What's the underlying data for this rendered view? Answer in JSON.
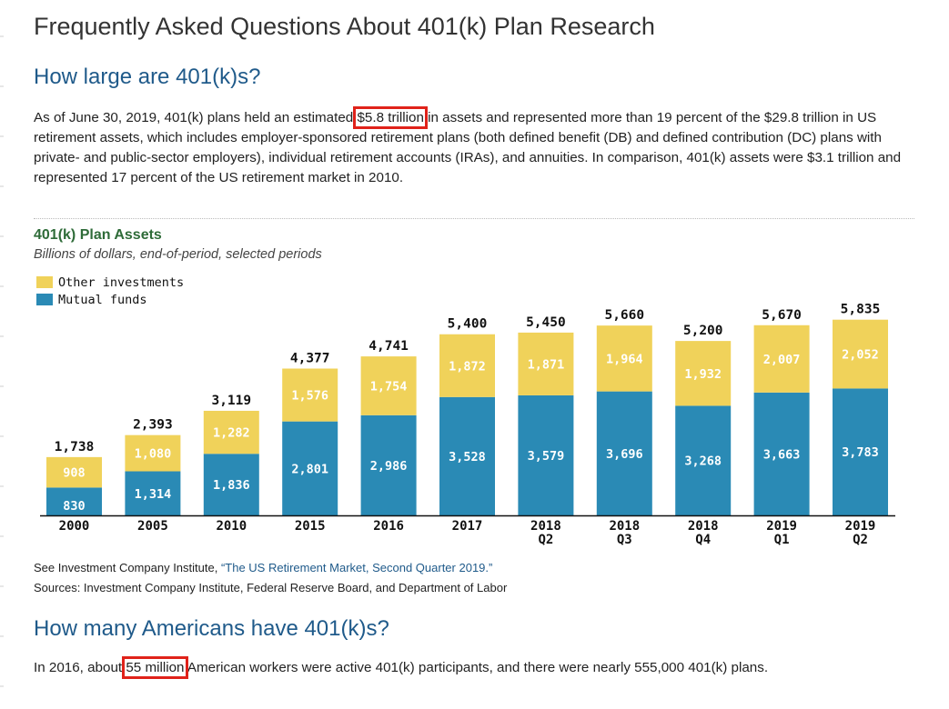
{
  "page": {
    "title": "Frequently Asked Questions About 401(k) Plan Research"
  },
  "section1": {
    "heading": "How large are 401(k)s?",
    "para_before": "As of June 30, 2019, 401(k) plans held an estimated ",
    "para_highlight": "$5.8 trillion",
    "para_after": " in assets and represented more than 19 percent of the $29.8 trillion in US retirement assets, which includes employer-sponsored retirement plans (both defined benefit (DB) and defined contribution (DC) plans with private- and public-sector employers), individual retirement accounts (IRAs), and annuities. In comparison, 401(k) assets were $3.1 trillion and represented 17 percent of the US retirement market in 2010."
  },
  "colors": {
    "other": "#f0d25a",
    "mutual": "#2a8ab5",
    "highlight_box": "#e0221a"
  },
  "chart_data": {
    "type": "bar",
    "stacked": true,
    "title": "401(k) Plan Assets",
    "subtitle": "Billions of dollars, end-of-period, selected periods",
    "categories": [
      "2000",
      "2005",
      "2010",
      "2015",
      "2016",
      "2017",
      "2018 Q2",
      "2018 Q3",
      "2018 Q4",
      "2019 Q1",
      "2019 Q2"
    ],
    "category_lines": [
      [
        "2000"
      ],
      [
        "2005"
      ],
      [
        "2010"
      ],
      [
        "2015"
      ],
      [
        "2016"
      ],
      [
        "2017"
      ],
      [
        "2018",
        "Q2"
      ],
      [
        "2018",
        "Q3"
      ],
      [
        "2018",
        "Q4"
      ],
      [
        "2019",
        "Q1"
      ],
      [
        "2019",
        "Q2"
      ]
    ],
    "series": [
      {
        "name": "Mutual funds",
        "values": [
          830,
          1314,
          1836,
          2801,
          2986,
          3528,
          3579,
          3696,
          3268,
          3663,
          3783
        ],
        "labels": [
          "830",
          "1,314",
          "1,836",
          "2,801",
          "2,986",
          "3,528",
          "3,579",
          "3,696",
          "3,268",
          "3,663",
          "3,783"
        ]
      },
      {
        "name": "Other investments",
        "values": [
          908,
          1080,
          1282,
          1576,
          1754,
          1872,
          1871,
          1964,
          1932,
          2007,
          2052
        ],
        "labels": [
          "908",
          "1,080",
          "1,282",
          "1,576",
          "1,754",
          "1,872",
          "1,871",
          "1,964",
          "1,932",
          "2,007",
          "2,052"
        ]
      }
    ],
    "totals": [
      1738,
      2393,
      3119,
      4377,
      4741,
      5400,
      5450,
      5660,
      5200,
      5670,
      5835
    ],
    "total_labels": [
      "1,738",
      "2,393",
      "3,119",
      "4,377",
      "4,741",
      "5,400",
      "5,450",
      "5,660",
      "5,200",
      "5,670",
      "5,835"
    ],
    "legend": [
      "Other investments",
      "Mutual funds"
    ],
    "legend_position": "top-left"
  },
  "notes": {
    "see_prefix": "See Investment Company Institute, ",
    "see_link": "“The US Retirement Market, Second Quarter 2019.”",
    "sources": "Sources: Investment Company Institute, Federal Reserve Board, and Department of Labor"
  },
  "section2": {
    "heading": "How many Americans have 401(k)s?",
    "para_before": "In 2016, about ",
    "para_highlight": "55 million",
    "para_after": " American workers were active 401(k) participants, and there were nearly 555,000 401(k) plans."
  }
}
